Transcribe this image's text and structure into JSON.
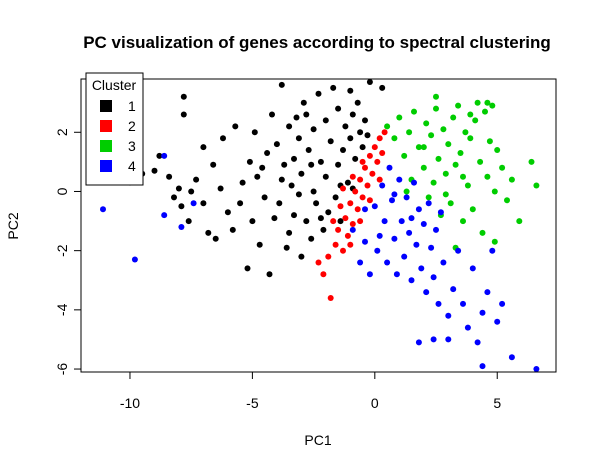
{
  "chart_data": {
    "type": "scatter",
    "title": "PC visualization of genes according to spectral clustering",
    "xlabel": "PC1",
    "ylabel": "PC2",
    "xlim": [
      -12,
      7.4
    ],
    "ylim": [
      -6.1,
      3.8
    ],
    "xticks": [
      -10,
      -5,
      0,
      5
    ],
    "xtick_labels": [
      "-10",
      "-5",
      "0",
      "5"
    ],
    "yticks": [
      -6,
      -4,
      -2,
      0,
      2
    ],
    "ytick_labels": [
      "-6",
      "-4",
      "-2",
      "0",
      "2"
    ],
    "grid": false,
    "legend": {
      "title": "Cluster",
      "position": "top-left",
      "entries": [
        {
          "label": "1",
          "color": "#000000"
        },
        {
          "label": "2",
          "color": "#ff0000"
        },
        {
          "label": "3",
          "color": "#00cd00"
        },
        {
          "label": "4",
          "color": "#0000ff"
        }
      ]
    },
    "series": [
      {
        "name": "1",
        "color": "#000000",
        "points": [
          [
            -10.0,
            0.3
          ],
          [
            -9.5,
            0.6
          ],
          [
            -9.0,
            0.7
          ],
          [
            -8.8,
            1.2
          ],
          [
            -8.4,
            0.5
          ],
          [
            -8.2,
            -0.2
          ],
          [
            -8.0,
            0.1
          ],
          [
            -7.9,
            -0.5
          ],
          [
            -7.8,
            3.2
          ],
          [
            -7.8,
            2.6
          ],
          [
            -7.6,
            -1.0
          ],
          [
            -7.5,
            0.0
          ],
          [
            -7.3,
            0.4
          ],
          [
            -7.0,
            -0.4
          ],
          [
            -6.8,
            -1.4
          ],
          [
            -6.5,
            -1.6
          ],
          [
            -6.6,
            0.9
          ],
          [
            -6.3,
            0.1
          ],
          [
            -6.0,
            -0.7
          ],
          [
            -5.8,
            -1.3
          ],
          [
            -5.5,
            -0.4
          ],
          [
            -5.4,
            0.3
          ],
          [
            -5.2,
            -2.6
          ],
          [
            -5.1,
            1.0
          ],
          [
            -5.0,
            -1.0
          ],
          [
            -4.9,
            2.0
          ],
          [
            -4.8,
            0.5
          ],
          [
            -4.7,
            -1.8
          ],
          [
            -4.5,
            -0.2
          ],
          [
            -4.4,
            1.3
          ],
          [
            -4.3,
            -2.8
          ],
          [
            -4.2,
            2.6
          ],
          [
            -4.1,
            -0.9
          ],
          [
            -4.0,
            1.6
          ],
          [
            -3.9,
            -0.4
          ],
          [
            -3.8,
            3.6
          ],
          [
            -3.7,
            0.9
          ],
          [
            -3.6,
            -1.9
          ],
          [
            -3.5,
            2.2
          ],
          [
            -3.5,
            -1.4
          ],
          [
            -3.4,
            0.2
          ],
          [
            -3.3,
            1.1
          ],
          [
            -3.3,
            -0.8
          ],
          [
            -3.2,
            2.5
          ],
          [
            -3.1,
            1.8
          ],
          [
            -3.0,
            -2.2
          ],
          [
            -3.0,
            0.6
          ],
          [
            -2.9,
            3.0
          ],
          [
            -2.8,
            -1.0
          ],
          [
            -2.7,
            1.4
          ],
          [
            -2.6,
            -1.6
          ],
          [
            -2.5,
            2.1
          ],
          [
            -2.5,
            0.0
          ],
          [
            -2.4,
            -0.4
          ],
          [
            -2.3,
            3.3
          ],
          [
            -2.2,
            1.0
          ],
          [
            -2.1,
            -1.3
          ],
          [
            -2.0,
            2.4
          ],
          [
            -2.0,
            0.5
          ],
          [
            -1.9,
            -0.7
          ],
          [
            -1.8,
            1.7
          ],
          [
            -1.7,
            3.5
          ],
          [
            -1.6,
            -0.2
          ],
          [
            -1.5,
            2.8
          ],
          [
            -1.5,
            0.9
          ],
          [
            -1.4,
            -1.0
          ],
          [
            -1.3,
            1.4
          ],
          [
            -1.2,
            2.2
          ],
          [
            -1.1,
            0.3
          ],
          [
            -1.0,
            1.8
          ],
          [
            -0.9,
            2.6
          ],
          [
            -0.8,
            1.1
          ],
          [
            -0.7,
            3.0
          ],
          [
            -0.6,
            2.0
          ],
          [
            -0.5,
            1.5
          ],
          [
            -0.4,
            2.4
          ],
          [
            -0.3,
            1.9
          ],
          [
            -0.2,
            3.7
          ],
          [
            -1.0,
            3.4
          ],
          [
            0.3,
            3.5
          ],
          [
            -2.6,
            0.9
          ],
          [
            -3.8,
            0.4
          ],
          [
            -4.6,
            0.8
          ],
          [
            -2.2,
            -0.9
          ],
          [
            -1.4,
            0.2
          ],
          [
            -3.1,
            -0.1
          ],
          [
            -2.8,
            2.6
          ],
          [
            -0.9,
            0.1
          ],
          [
            -5.7,
            2.2
          ],
          [
            -7.0,
            1.5
          ],
          [
            -6.2,
            1.8
          ]
        ]
      },
      {
        "name": "2",
        "color": "#ff0000",
        "points": [
          [
            -2.3,
            -2.4
          ],
          [
            -2.1,
            -2.8
          ],
          [
            -1.8,
            -3.6
          ],
          [
            -1.9,
            -2.2
          ],
          [
            -1.6,
            -1.8
          ],
          [
            -1.5,
            -1.3
          ],
          [
            -1.3,
            -2.0
          ],
          [
            -1.2,
            -0.9
          ],
          [
            -1.1,
            -1.5
          ],
          [
            -1.0,
            -0.4
          ],
          [
            -0.9,
            -1.1
          ],
          [
            -0.8,
            0.0
          ],
          [
            -0.7,
            -0.6
          ],
          [
            -0.6,
            0.4
          ],
          [
            -0.5,
            -0.2
          ],
          [
            -0.4,
            0.8
          ],
          [
            -0.3,
            0.2
          ],
          [
            -0.2,
            1.2
          ],
          [
            -0.1,
            0.6
          ],
          [
            0.0,
            1.5
          ],
          [
            0.1,
            1.0
          ],
          [
            0.2,
            1.8
          ],
          [
            0.3,
            1.3
          ],
          [
            0.4,
            2.0
          ],
          [
            -1.4,
            -0.5
          ],
          [
            -1.0,
            -1.8
          ],
          [
            -0.6,
            -1.0
          ],
          [
            -0.2,
            -0.3
          ],
          [
            0.2,
            0.4
          ],
          [
            -1.7,
            -1.0
          ],
          [
            -1.3,
            0.1
          ],
          [
            -0.9,
            0.5
          ],
          [
            -0.5,
            1.0
          ]
        ]
      },
      {
        "name": "3",
        "color": "#00cd00",
        "points": [
          [
            0.5,
            2.2
          ],
          [
            0.8,
            1.8
          ],
          [
            1.0,
            2.5
          ],
          [
            1.2,
            1.2
          ],
          [
            1.4,
            2.0
          ],
          [
            1.5,
            0.4
          ],
          [
            1.6,
            2.7
          ],
          [
            1.8,
            1.5
          ],
          [
            2.0,
            0.8
          ],
          [
            2.1,
            2.3
          ],
          [
            2.2,
            -0.2
          ],
          [
            2.3,
            1.9
          ],
          [
            2.4,
            0.3
          ],
          [
            2.5,
            2.8
          ],
          [
            2.6,
            1.1
          ],
          [
            2.7,
            -0.8
          ],
          [
            2.8,
            2.1
          ],
          [
            2.9,
            0.6
          ],
          [
            3.0,
            1.6
          ],
          [
            3.1,
            -0.4
          ],
          [
            3.2,
            2.5
          ],
          [
            3.3,
            0.9
          ],
          [
            3.4,
            2.9
          ],
          [
            3.5,
            1.3
          ],
          [
            3.6,
            -1.0
          ],
          [
            3.7,
            2.0
          ],
          [
            3.8,
            0.2
          ],
          [
            3.9,
            1.8
          ],
          [
            4.0,
            -0.6
          ],
          [
            4.1,
            2.4
          ],
          [
            4.2,
            3.0
          ],
          [
            4.3,
            1.0
          ],
          [
            4.4,
            -1.4
          ],
          [
            4.5,
            2.7
          ],
          [
            4.6,
            0.5
          ],
          [
            4.7,
            1.7
          ],
          [
            4.8,
            2.9
          ],
          [
            4.9,
            0.0
          ],
          [
            5.0,
            1.4
          ],
          [
            5.2,
            0.8
          ],
          [
            5.4,
            -0.3
          ],
          [
            5.6,
            0.4
          ],
          [
            5.9,
            -1.0
          ],
          [
            6.4,
            1.0
          ],
          [
            6.6,
            0.2
          ],
          [
            4.9,
            -1.7
          ],
          [
            3.3,
            -1.9
          ],
          [
            2.5,
            3.2
          ],
          [
            1.3,
            0.0
          ],
          [
            3.9,
            2.6
          ],
          [
            4.6,
            3.0
          ],
          [
            2.0,
            1.5
          ],
          [
            3.6,
            0.5
          ],
          [
            2.9,
            -0.1
          ]
        ]
      },
      {
        "name": "4",
        "color": "#0000ff",
        "points": [
          [
            -11.1,
            -0.6
          ],
          [
            -9.8,
            -2.3
          ],
          [
            -8.6,
            1.2
          ],
          [
            -8.6,
            -0.8
          ],
          [
            -7.9,
            -1.2
          ],
          [
            -7.4,
            -0.4
          ],
          [
            -0.9,
            -1.3
          ],
          [
            -0.6,
            -2.4
          ],
          [
            -0.4,
            -1.7
          ],
          [
            -0.2,
            -2.8
          ],
          [
            0.0,
            -0.5
          ],
          [
            0.1,
            -2.0
          ],
          [
            0.3,
            0.2
          ],
          [
            0.4,
            -1.0
          ],
          [
            0.5,
            -2.4
          ],
          [
            0.6,
            0.8
          ],
          [
            0.7,
            -0.3
          ],
          [
            0.8,
            -1.6
          ],
          [
            0.9,
            -2.8
          ],
          [
            1.0,
            0.4
          ],
          [
            1.1,
            -1.0
          ],
          [
            1.2,
            -2.2
          ],
          [
            1.3,
            -0.2
          ],
          [
            1.4,
            -1.4
          ],
          [
            1.5,
            -3.0
          ],
          [
            1.6,
            0.3
          ],
          [
            1.7,
            -1.8
          ],
          [
            1.8,
            -0.6
          ],
          [
            1.9,
            -2.6
          ],
          [
            2.0,
            -1.1
          ],
          [
            2.1,
            -3.4
          ],
          [
            2.2,
            -0.4
          ],
          [
            2.3,
            -1.9
          ],
          [
            2.4,
            -2.9
          ],
          [
            2.5,
            -1.3
          ],
          [
            2.6,
            -3.8
          ],
          [
            2.7,
            -0.7
          ],
          [
            2.8,
            -2.4
          ],
          [
            3.0,
            -4.2
          ],
          [
            3.2,
            -3.3
          ],
          [
            3.4,
            -2.0
          ],
          [
            3.6,
            -3.8
          ],
          [
            3.8,
            -4.6
          ],
          [
            4.0,
            -2.6
          ],
          [
            4.2,
            -5.1
          ],
          [
            4.4,
            -4.1
          ],
          [
            4.6,
            -3.4
          ],
          [
            4.8,
            -2.0
          ],
          [
            5.0,
            -4.4
          ],
          [
            5.2,
            -3.8
          ],
          [
            5.6,
            -5.6
          ],
          [
            6.6,
            -6.0
          ],
          [
            4.4,
            -5.9
          ],
          [
            3.0,
            -5.0
          ],
          [
            1.8,
            -5.1
          ],
          [
            2.4,
            -5.0
          ],
          [
            -0.4,
            -0.6
          ],
          [
            0.2,
            -1.5
          ],
          [
            1.5,
            -0.9
          ],
          [
            0.8,
            -0.1
          ]
        ]
      }
    ]
  }
}
